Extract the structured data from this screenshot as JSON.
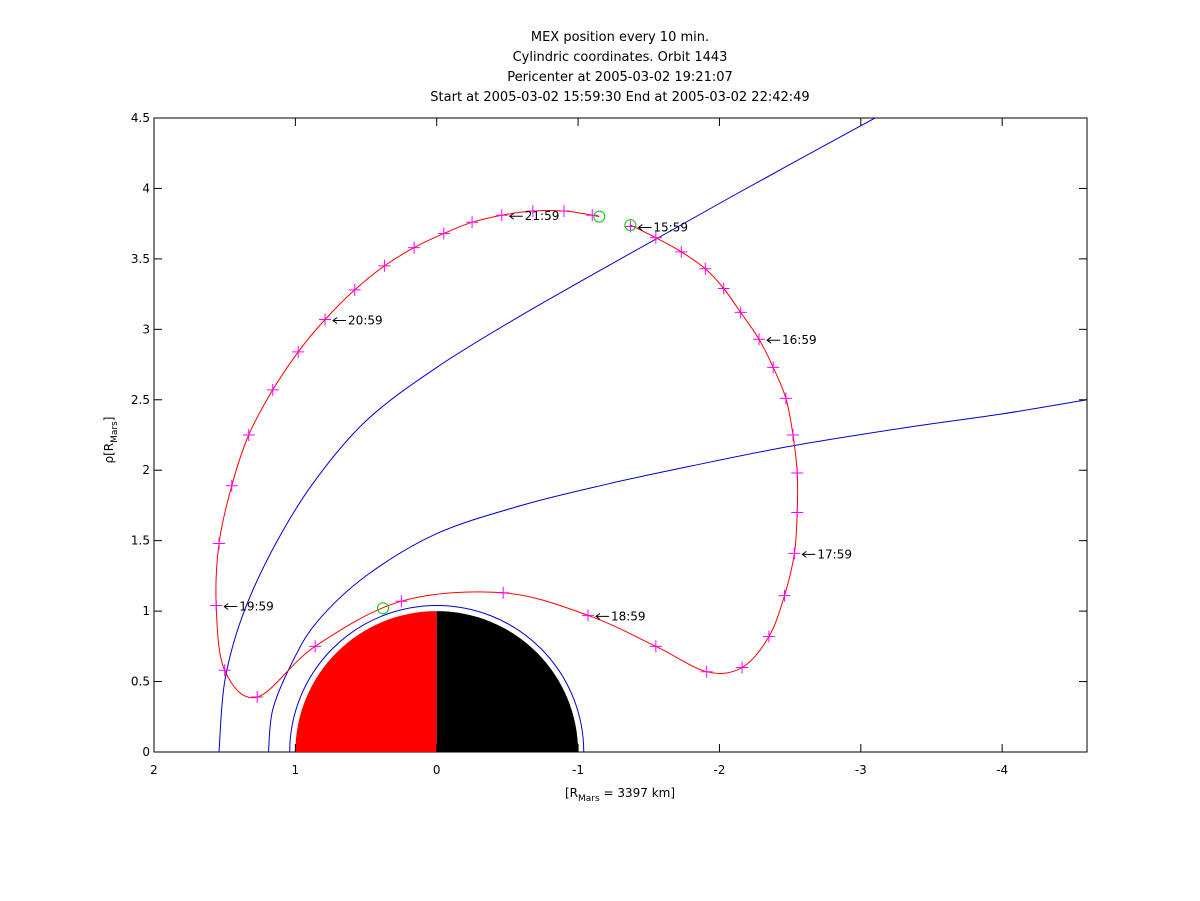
{
  "chart_data": {
    "type": "line",
    "title_lines": [
      "MEX position every 10 min.",
      "Cylindric coordinates. Orbit 1443",
      "Pericenter at 2005-03-02 19:21:07",
      "Start at 2005-03-02 15:59:30 End at 2005-03-02 22:42:49"
    ],
    "xlabel": {
      "main": "[R",
      "sub": "Mars",
      "rest": " = 3397 km]"
    },
    "ylabel": {
      "main": "ρ[R",
      "sub": "Mars",
      "rest": "]"
    },
    "xlim": [
      2,
      -4.6
    ],
    "ylim": [
      0,
      4.5
    ],
    "xticks": [
      2,
      1,
      0,
      -1,
      -2,
      -3,
      -4
    ],
    "yticks": [
      0,
      0.5,
      1,
      1.5,
      2,
      2.5,
      3,
      3.5,
      4,
      4.5
    ],
    "colors": {
      "orbit": "#ff0000",
      "marker": "#ff00ff",
      "boundary": "#0000cc",
      "endpoint": "#00cc00",
      "planet_day": "#ff0000",
      "planet_night": "#000000"
    },
    "orbit_markers": [
      {
        "x": -1.37,
        "y": 3.73
      },
      {
        "x": -1.55,
        "y": 3.65
      },
      {
        "x": -1.73,
        "y": 3.55
      },
      {
        "x": -1.9,
        "y": 3.43
      },
      {
        "x": -2.03,
        "y": 3.29
      },
      {
        "x": -2.15,
        "y": 3.12
      },
      {
        "x": -2.28,
        "y": 2.93
      },
      {
        "x": -2.38,
        "y": 2.73
      },
      {
        "x": -2.47,
        "y": 2.51
      },
      {
        "x": -2.52,
        "y": 2.25
      },
      {
        "x": -2.55,
        "y": 1.98
      },
      {
        "x": -2.55,
        "y": 1.7
      },
      {
        "x": -2.53,
        "y": 1.41
      },
      {
        "x": -2.46,
        "y": 1.11
      },
      {
        "x": -2.35,
        "y": 0.82
      },
      {
        "x": -2.16,
        "y": 0.6
      },
      {
        "x": -1.91,
        "y": 0.57
      },
      {
        "x": -1.55,
        "y": 0.75
      },
      {
        "x": -1.07,
        "y": 0.97
      },
      {
        "x": -0.47,
        "y": 1.13
      },
      {
        "x": 0.25,
        "y": 1.07
      },
      {
        "x": 0.86,
        "y": 0.75
      },
      {
        "x": 1.27,
        "y": 0.39
      },
      {
        "x": 1.5,
        "y": 0.58
      },
      {
        "x": 1.56,
        "y": 1.04
      },
      {
        "x": 1.54,
        "y": 1.48
      },
      {
        "x": 1.45,
        "y": 1.89
      },
      {
        "x": 1.33,
        "y": 2.25
      },
      {
        "x": 1.16,
        "y": 2.57
      },
      {
        "x": 0.98,
        "y": 2.84
      },
      {
        "x": 0.79,
        "y": 3.07
      },
      {
        "x": 0.58,
        "y": 3.28
      },
      {
        "x": 0.37,
        "y": 3.45
      },
      {
        "x": 0.16,
        "y": 3.58
      },
      {
        "x": -0.05,
        "y": 3.68
      },
      {
        "x": -0.25,
        "y": 3.76
      },
      {
        "x": -0.46,
        "y": 3.81
      },
      {
        "x": -0.68,
        "y": 3.84
      },
      {
        "x": -0.9,
        "y": 3.84
      },
      {
        "x": -1.1,
        "y": 3.81
      }
    ],
    "orbit_endpoints": [
      {
        "x": -1.37,
        "y": 3.74
      },
      {
        "x": -1.15,
        "y": 3.8
      },
      {
        "x": 0.38,
        "y": 1.02
      }
    ],
    "time_labels": [
      {
        "text": "15:59",
        "x": -1.37,
        "y": 3.73
      },
      {
        "text": "16:59",
        "x": -2.28,
        "y": 2.93
      },
      {
        "text": "17:59",
        "x": -2.53,
        "y": 1.41
      },
      {
        "text": "18:59",
        "x": -1.07,
        "y": 0.97
      },
      {
        "text": "19:59",
        "x": 1.56,
        "y": 1.04
      },
      {
        "text": "20:59",
        "x": 0.79,
        "y": 3.07
      },
      {
        "text": "21:59",
        "x": -0.46,
        "y": 3.81
      }
    ],
    "bow_shock": [
      {
        "x": 1.54,
        "y": 0
      },
      {
        "x": 1.5,
        "y": 0.5
      },
      {
        "x": 1.38,
        "y": 0.95
      },
      {
        "x": 1.17,
        "y": 1.42
      },
      {
        "x": 0.88,
        "y": 1.9
      },
      {
        "x": 0.5,
        "y": 2.35
      },
      {
        "x": 0.0,
        "y": 2.73
      },
      {
        "x": -0.6,
        "y": 3.1
      },
      {
        "x": -1.3,
        "y": 3.5
      },
      {
        "x": -2.1,
        "y": 3.95
      },
      {
        "x": -3.1,
        "y": 4.5
      }
    ],
    "mpb": [
      {
        "x": 1.19,
        "y": 0
      },
      {
        "x": 1.16,
        "y": 0.3
      },
      {
        "x": 1.03,
        "y": 0.62
      },
      {
        "x": 0.85,
        "y": 0.92
      },
      {
        "x": 0.5,
        "y": 1.25
      },
      {
        "x": 0.0,
        "y": 1.55
      },
      {
        "x": -0.6,
        "y": 1.75
      },
      {
        "x": -1.2,
        "y": 1.9
      },
      {
        "x": -1.8,
        "y": 2.03
      },
      {
        "x": -2.5,
        "y": 2.17
      },
      {
        "x": -3.3,
        "y": 2.3
      },
      {
        "x": -4.0,
        "y": 2.4
      },
      {
        "x": -4.6,
        "y": 2.5
      }
    ],
    "planet_radius": 1.0,
    "ring_radius": 1.04
  }
}
